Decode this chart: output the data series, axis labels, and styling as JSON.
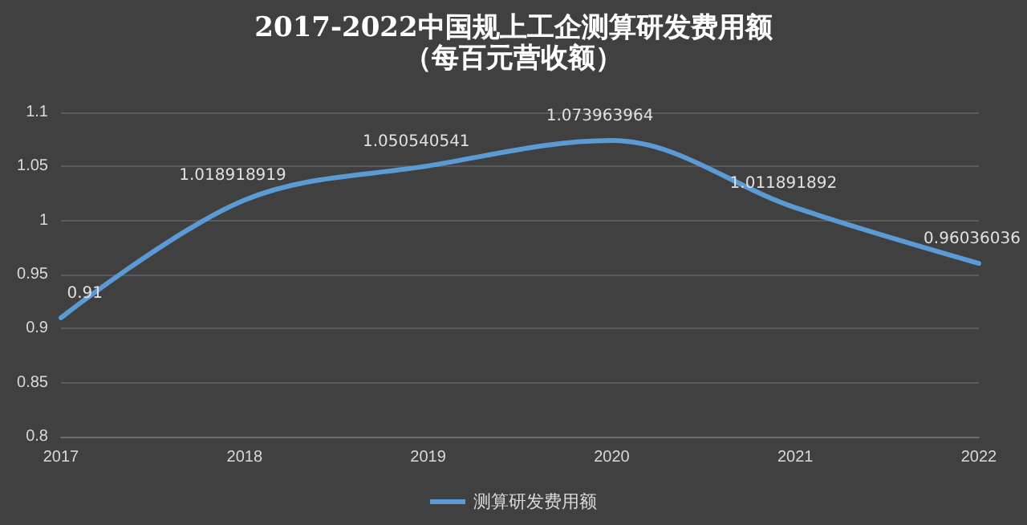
{
  "chart_data": {
    "type": "line",
    "title": "2017-2022中国规上工企测算研发费用额",
    "subtitle": "（每百元营收额）",
    "categories": [
      "2017",
      "2018",
      "2019",
      "2020",
      "2021",
      "2022"
    ],
    "series": [
      {
        "name": "测算研发费用额",
        "color": "#5b9bd5",
        "values": [
          0.91,
          1.018918919,
          1.050540541,
          1.073963964,
          1.011891892,
          0.96036036
        ]
      }
    ],
    "ylim": [
      0.8,
      1.1
    ],
    "yticks": [
      0.8,
      0.85,
      0.9,
      0.95,
      1,
      1.05,
      1.1
    ],
    "grid": "y",
    "legend": "bottom",
    "marker": "none",
    "line_style": "solid",
    "data_labels": true
  }
}
